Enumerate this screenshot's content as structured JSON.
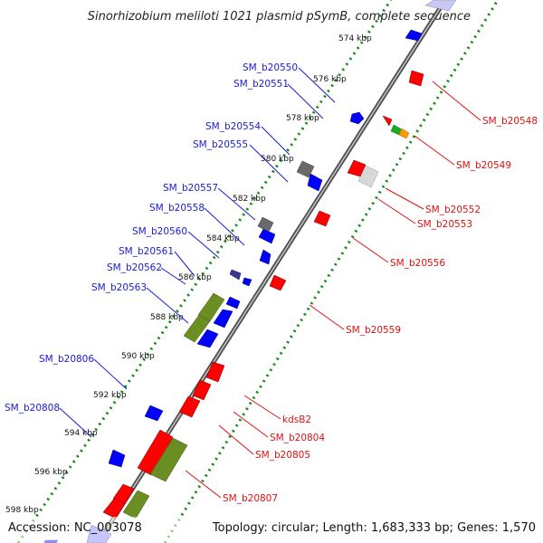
{
  "title": "Sinorhizobium meliloti 1021 plasmid pSymB, complete sequence",
  "footer": {
    "accession": "Accession: NC_003078",
    "summary": "Topology: circular; Length: 1,683,333 bp; Genes: 1,570"
  },
  "colors": {
    "forward_cds": "#ff0000",
    "reverse_cds": "#0000ff",
    "gray_feature": "#888888",
    "green_feature": "#6b8e23",
    "label_left": "#1a1ad6",
    "label_right": "#e01010",
    "tick_dots": "#1a8a1a",
    "backbone": "#7a7a7a"
  },
  "kbp_ticks": [
    "574 kbp",
    "576 kbp",
    "578 kbp",
    "580 kbp",
    "582 kbp",
    "584 kbp",
    "586 kbp",
    "588 kbp",
    "590 kbp",
    "592 kbp",
    "594 kbp",
    "596 kbp",
    "598 kbp"
  ],
  "left_labels": [
    "SM_b20550",
    "SM_b20551",
    "SM_b20554",
    "SM_b20555",
    "SM_b20557",
    "SM_b20558",
    "SM_b20560",
    "SM_b20561",
    "SM_b20562",
    "SM_b20563",
    "SM_b20806",
    "SM_b20808"
  ],
  "right_labels": [
    "SM_b20548",
    "SM_b20549",
    "SM_b20552",
    "SM_b20553",
    "SM_b20556",
    "SM_b20559",
    "kdsB2",
    "SM_b20804",
    "SM_b20805",
    "SM_b20807"
  ]
}
